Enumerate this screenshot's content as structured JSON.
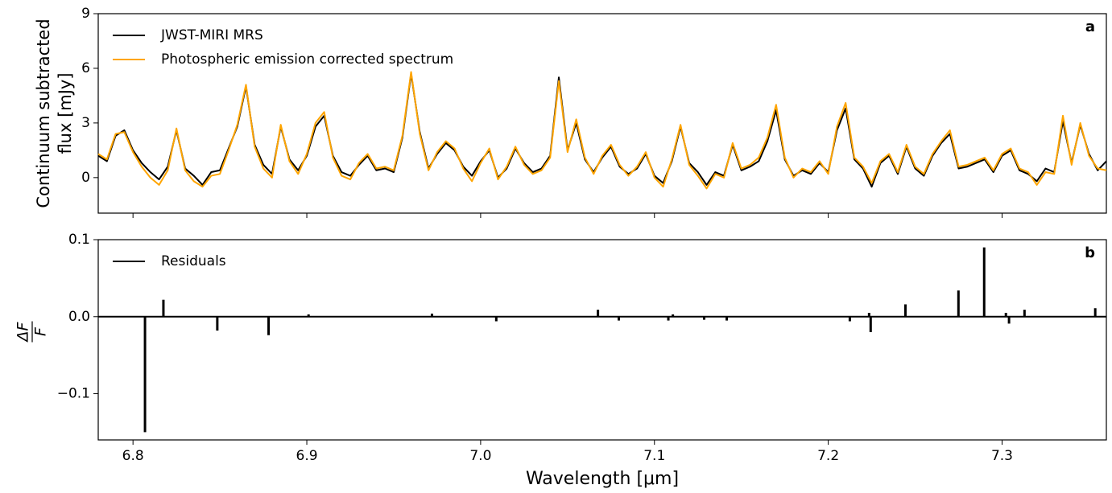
{
  "chart_data": [
    {
      "type": "line",
      "panel_label": "a",
      "ylabel": [
        "Continuum subtracted",
        "flux [mJy]"
      ],
      "xlim": [
        6.78,
        7.36
      ],
      "xticks": [
        6.8,
        6.9,
        7.0,
        7.1,
        7.2,
        7.3
      ],
      "ylim": [
        -1.95,
        9
      ],
      "yticks": [
        0,
        3,
        6,
        9
      ],
      "legend": "upper left",
      "x": [
        6.78,
        6.785,
        6.79,
        6.795,
        6.8,
        6.805,
        6.81,
        6.815,
        6.82,
        6.825,
        6.83,
        6.835,
        6.84,
        6.845,
        6.85,
        6.855,
        6.86,
        6.865,
        6.87,
        6.875,
        6.88,
        6.885,
        6.89,
        6.895,
        6.9,
        6.905,
        6.91,
        6.915,
        6.92,
        6.925,
        6.93,
        6.935,
        6.94,
        6.945,
        6.95,
        6.955,
        6.96,
        6.965,
        6.97,
        6.975,
        6.98,
        6.985,
        6.99,
        6.995,
        7.0,
        7.005,
        7.01,
        7.015,
        7.02,
        7.025,
        7.03,
        7.035,
        7.04,
        7.045,
        7.05,
        7.055,
        7.06,
        7.065,
        7.07,
        7.075,
        7.08,
        7.085,
        7.09,
        7.095,
        7.1,
        7.105,
        7.11,
        7.115,
        7.12,
        7.125,
        7.13,
        7.135,
        7.14,
        7.145,
        7.15,
        7.155,
        7.16,
        7.165,
        7.17,
        7.175,
        7.18,
        7.185,
        7.19,
        7.195,
        7.2,
        7.205,
        7.21,
        7.215,
        7.22,
        7.225,
        7.23,
        7.235,
        7.24,
        7.245,
        7.25,
        7.255,
        7.26,
        7.265,
        7.27,
        7.275,
        7.28,
        7.285,
        7.29,
        7.295,
        7.3,
        7.305,
        7.31,
        7.315,
        7.32,
        7.325,
        7.33,
        7.335,
        7.34,
        7.345,
        7.35,
        7.355,
        7.36
      ],
      "series": [
        {
          "name": "JWST-MIRI MRS",
          "color": "#000000",
          "values": [
            1.2,
            0.9,
            2.3,
            2.6,
            1.5,
            0.8,
            0.3,
            -0.1,
            0.6,
            2.6,
            0.5,
            0.1,
            -0.4,
            0.3,
            0.4,
            1.6,
            2.8,
            5.0,
            1.8,
            0.7,
            0.2,
            2.8,
            1.0,
            0.4,
            1.2,
            2.8,
            3.4,
            1.2,
            0.3,
            0.1,
            0.7,
            1.2,
            0.4,
            0.5,
            0.3,
            2.2,
            5.7,
            2.5,
            0.5,
            1.3,
            1.9,
            1.5,
            0.6,
            0.1,
            0.9,
            1.5,
            0.0,
            0.5,
            1.6,
            0.8,
            0.3,
            0.5,
            1.2,
            5.5,
            1.5,
            3.0,
            1.0,
            0.3,
            1.1,
            1.7,
            0.6,
            0.2,
            0.5,
            1.3,
            0.1,
            -0.3,
            0.9,
            2.8,
            0.8,
            0.3,
            -0.4,
            0.3,
            0.1,
            1.8,
            0.4,
            0.6,
            0.9,
            2.0,
            3.7,
            1.0,
            0.1,
            0.4,
            0.2,
            0.8,
            0.3,
            2.6,
            3.8,
            1.0,
            0.5,
            -0.5,
            0.8,
            1.2,
            0.2,
            1.7,
            0.5,
            0.1,
            1.2,
            1.9,
            2.4,
            0.5,
            0.6,
            0.8,
            1.0,
            0.3,
            1.2,
            1.5,
            0.4,
            0.2,
            -0.2,
            0.5,
            0.3,
            3.1,
            0.8,
            2.9,
            1.3,
            0.4,
            0.9
          ]
        },
        {
          "name": "Photospheric emission corrected spectrum",
          "color": "#ffa500",
          "values": [
            1.3,
            1.0,
            2.4,
            2.5,
            1.4,
            0.6,
            0.0,
            -0.4,
            0.4,
            2.7,
            0.4,
            -0.2,
            -0.5,
            0.1,
            0.2,
            1.5,
            2.9,
            5.1,
            1.7,
            0.5,
            0.0,
            2.9,
            0.9,
            0.2,
            1.3,
            3.0,
            3.6,
            1.1,
            0.1,
            -0.1,
            0.8,
            1.3,
            0.5,
            0.6,
            0.4,
            2.3,
            5.8,
            2.4,
            0.4,
            1.4,
            2.0,
            1.6,
            0.5,
            -0.2,
            0.8,
            1.6,
            -0.1,
            0.6,
            1.7,
            0.7,
            0.2,
            0.4,
            1.1,
            5.3,
            1.4,
            3.2,
            1.1,
            0.2,
            1.2,
            1.8,
            0.7,
            0.1,
            0.6,
            1.4,
            0.0,
            -0.5,
            1.0,
            2.9,
            0.7,
            0.1,
            -0.6,
            0.2,
            0.0,
            1.9,
            0.5,
            0.7,
            1.1,
            2.2,
            4.0,
            1.1,
            0.0,
            0.5,
            0.3,
            0.9,
            0.2,
            2.8,
            4.1,
            1.1,
            0.6,
            -0.3,
            0.9,
            1.3,
            0.3,
            1.8,
            0.6,
            0.2,
            1.3,
            2.0,
            2.6,
            0.6,
            0.7,
            0.9,
            1.1,
            0.4,
            1.3,
            1.6,
            0.5,
            0.3,
            -0.4,
            0.3,
            0.2,
            3.4,
            0.7,
            3.0,
            1.2,
            0.5,
            0.4
          ]
        }
      ]
    },
    {
      "type": "spikes",
      "panel_label": "b",
      "ylabel": [
        "ΔF",
        "F"
      ],
      "xlabel": "Wavelength [μm]",
      "xlim": [
        6.78,
        7.36
      ],
      "xticks": [
        6.8,
        6.9,
        {
          "value": 7.0,
          "label": "7.0"
        },
        7.1,
        7.2,
        7.3
      ],
      "ylim": [
        -0.16,
        0.1
      ],
      "yticks": [
        {
          "value": -0.1,
          "label": "−0.1"
        },
        {
          "value": 0.0,
          "label": "0.0"
        },
        0.1
      ],
      "legend": "upper left",
      "x": [
        6.8069,
        6.8175,
        6.8485,
        6.878,
        6.901,
        6.972,
        7.009,
        7.0675,
        7.0795,
        7.108,
        7.1106,
        7.1286,
        7.1416,
        7.2124,
        7.2235,
        7.2244,
        7.2444,
        7.2749,
        7.2897,
        7.3022,
        7.304,
        7.3129,
        7.3536
      ],
      "series": [
        {
          "name": "Residuals",
          "color": "#000000",
          "values": [
            -0.15,
            0.022,
            -0.018,
            -0.024,
            0.003,
            0.004,
            -0.006,
            0.009,
            -0.005,
            -0.005,
            0.003,
            -0.004,
            -0.005,
            -0.006,
            0.005,
            -0.02,
            0.016,
            0.034,
            0.09,
            0.005,
            -0.009,
            0.009,
            0.011
          ]
        }
      ]
    }
  ]
}
